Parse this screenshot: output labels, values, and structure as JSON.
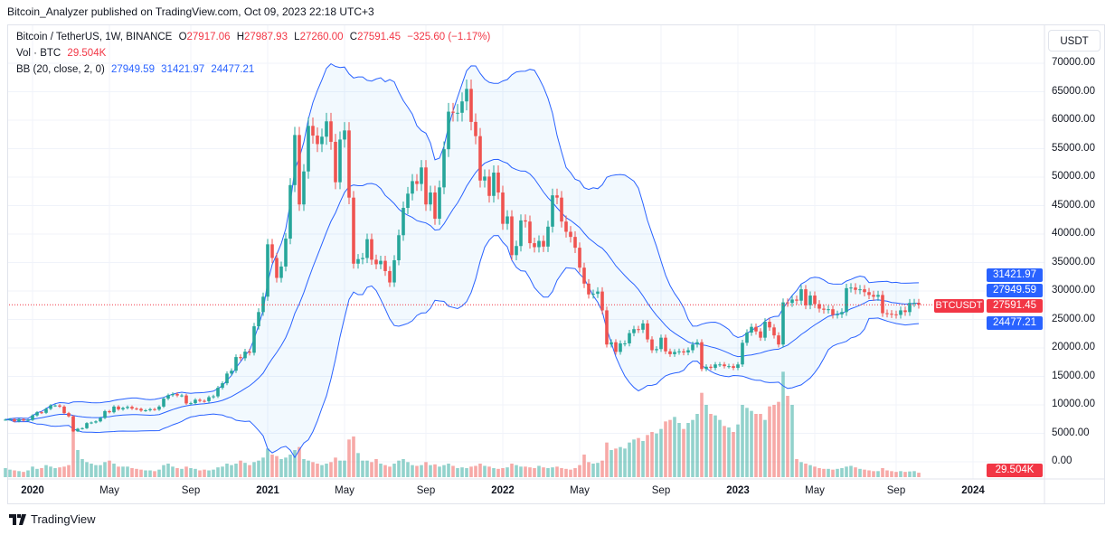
{
  "published": "Bitcoin_Analyzer published on TradingView.com, Oct 09, 2023 22:18 UTC+3",
  "legend": {
    "symbol": "Bitcoin / TetherUS, 1W, BINANCE",
    "o_label": "O",
    "o": "27917.06",
    "h_label": "H",
    "h": "27987.93",
    "l_label": "L",
    "l": "27260.00",
    "c_label": "C",
    "c": "27591.45",
    "change": "−325.60 (−1.17%)",
    "vol_label": "Vol · BTC",
    "vol": "29.504K",
    "bb_label": "BB (20, close, 2, 0)",
    "bb_basis": "27949.59",
    "bb_upper": "31421.97",
    "bb_lower": "24477.21"
  },
  "currency_button": "USDT",
  "symbol_tag": "BTCUSDT",
  "price_tags": {
    "upper": "31421.97",
    "basis": "27949.59",
    "last": "27591.45",
    "lower": "24477.21",
    "volume": "29.504K"
  },
  "brand": "TradingView",
  "colors": {
    "up": "#26a69a",
    "down": "#ef5350",
    "bb": "#2962ff",
    "bb_fill": "#2196f3",
    "last": "#f23645"
  },
  "chart_data": {
    "type": "candlestick",
    "interval": "1W",
    "x_start": "2019-11-25",
    "y_ticks": [
      "0.00",
      "5000.00",
      "10000.00",
      "15000.00",
      "20000.00",
      "25000.00",
      "30000.00",
      "35000.00",
      "40000.00",
      "45000.00",
      "50000.00",
      "55000.00",
      "60000.00",
      "65000.00",
      "70000.00"
    ],
    "ylim": [
      0,
      70000
    ],
    "x_ticks": [
      "2020",
      "May",
      "Sep",
      "2021",
      "May",
      "Sep",
      "2022",
      "May",
      "Sep",
      "2023",
      "May",
      "Sep",
      "2024"
    ],
    "grid": true,
    "indicator": "Bollinger Bands (20, close, 2)",
    "close": [
      7400,
      7500,
      7100,
      7500,
      7250,
      7350,
      8150,
      8700,
      8600,
      9300,
      9900,
      9900,
      9700,
      8550,
      8000,
      5350,
      5800,
      5900,
      6800,
      6900,
      7100,
      7700,
      8900,
      8700,
      9700,
      9200,
      9450,
      9650,
      9350,
      9300,
      9000,
      9050,
      9250,
      9170,
      9700,
      11100,
      11700,
      11900,
      11650,
      11650,
      10250,
      10300,
      10900,
      10700,
      10650,
      11350,
      11500,
      13000,
      13800,
      15500,
      16000,
      18400,
      18200,
      19350,
      19150,
      23800,
      26300,
      29000,
      38200,
      35800,
      32300,
      34300,
      39200,
      48600,
      57400,
      45200,
      51000,
      59000,
      57300,
      55800,
      57100,
      59800,
      56200,
      49100,
      56600,
      58200,
      46400,
      34800,
      35600,
      35800,
      39100,
      35500,
      34700,
      35300,
      33500,
      31500,
      35400,
      39800,
      44600,
      47100,
      49300,
      48800,
      51700,
      45200,
      47300,
      42700,
      48200,
      54900,
      61500,
      61300,
      61300,
      63300,
      65500,
      59700,
      57200,
      49400,
      50100,
      46700,
      50800,
      47300,
      41800,
      43100,
      36300,
      37900,
      42400,
      42200,
      38400,
      37700,
      38800,
      37800,
      41300,
      46800,
      46400,
      42200,
      40400,
      39500,
      37600,
      34100,
      31300,
      29400,
      29500,
      29900,
      26600,
      20600,
      21000,
      19300,
      20800,
      20800,
      22600,
      23300,
      23200,
      24300,
      21500,
      19600,
      19800,
      21800,
      19400,
      18900,
      19300,
      19400,
      19200,
      19600,
      20600,
      21000,
      16300,
      16700,
      16500,
      17100,
      17100,
      16800,
      16800,
      16500,
      17100,
      20900,
      22700,
      23700,
      22900,
      21800,
      24600,
      23600,
      22200,
      20600,
      28000,
      27900,
      28500,
      28300,
      30300,
      27500,
      29200,
      27700,
      26900,
      26700,
      26800,
      25800,
      25900,
      26300,
      30500,
      30600,
      30200,
      30300,
      29800,
      29300,
      29000,
      29300,
      26100,
      26000,
      25900,
      25800,
      26600,
      26300,
      27900,
      27917.06,
      27591.45
    ],
    "volume_k": [
      60,
      50,
      45,
      40,
      35,
      45,
      70,
      55,
      60,
      80,
      70,
      60,
      65,
      70,
      80,
      400,
      180,
      120,
      100,
      90,
      80,
      80,
      100,
      110,
      90,
      70,
      70,
      70,
      60,
      55,
      50,
      45,
      45,
      40,
      50,
      80,
      90,
      70,
      60,
      55,
      70,
      60,
      55,
      45,
      50,
      45,
      50,
      65,
      70,
      90,
      80,
      90,
      110,
      95,
      80,
      100,
      110,
      130,
      190,
      150,
      140,
      120,
      130,
      150,
      180,
      200,
      120,
      110,
      100,
      90,
      80,
      90,
      100,
      130,
      110,
      110,
      250,
      270,
      160,
      110,
      110,
      100,
      120,
      90,
      80,
      70,
      90,
      110,
      120,
      100,
      80,
      75,
      80,
      100,
      80,
      85,
      70,
      80,
      90,
      75,
      60,
      65,
      60,
      70,
      75,
      90,
      75,
      70,
      60,
      55,
      60,
      65,
      90,
      80,
      70,
      70,
      65,
      60,
      75,
      65,
      60,
      65,
      70,
      60,
      55,
      50,
      60,
      80,
      150,
      100,
      90,
      95,
      110,
      230,
      180,
      190,
      200,
      190,
      230,
      250,
      260,
      240,
      280,
      300,
      290,
      320,
      370,
      380,
      400,
      360,
      320,
      360,
      380,
      420,
      560,
      480,
      420,
      410,
      380,
      340,
      330,
      300,
      350,
      480,
      460,
      440,
      420,
      420,
      380,
      470,
      480,
      500,
      700,
      540,
      480,
      120,
      100,
      90,
      80,
      70,
      60,
      55,
      55,
      50,
      55,
      60,
      70,
      75,
      65,
      55,
      50,
      45,
      40,
      40,
      60,
      45,
      40,
      35,
      40,
      35,
      38,
      40,
      29.504
    ]
  }
}
